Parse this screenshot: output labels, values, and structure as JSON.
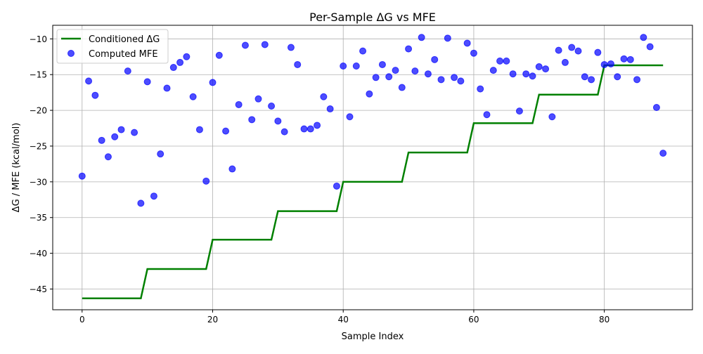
{
  "chart_data": {
    "type": "line+scatter",
    "title": "Per-Sample ΔG vs MFE",
    "xlabel": "Sample Index",
    "ylabel": "ΔG / MFE (kcal/mol)",
    "xlim": [
      -4.5,
      93.5
    ],
    "ylim": [
      -47.9,
      -8.1
    ],
    "xticks": [
      0,
      20,
      40,
      60,
      80
    ],
    "yticks": [
      -45,
      -40,
      -35,
      -30,
      -25,
      -20,
      -15,
      -10
    ],
    "grid": true,
    "legend_position": "upper-left",
    "series": [
      {
        "name": "Conditioned ΔG",
        "kind": "line",
        "color": "#008000",
        "x": [
          0,
          9,
          10,
          19,
          20,
          29,
          30,
          39,
          40,
          49,
          50,
          59,
          60,
          69,
          70,
          79,
          80,
          89
        ],
        "y": [
          -46.3,
          -46.3,
          -42.2,
          -42.2,
          -38.1,
          -38.1,
          -34.1,
          -34.1,
          -30.0,
          -30.0,
          -25.9,
          -25.9,
          -21.8,
          -21.8,
          -17.8,
          -17.8,
          -13.7,
          -13.7
        ]
      },
      {
        "name": "Computed MFE",
        "kind": "scatter",
        "color": "#0000ff",
        "x": [
          0,
          1,
          2,
          3,
          4,
          5,
          6,
          7,
          8,
          9,
          10,
          11,
          12,
          13,
          14,
          15,
          16,
          17,
          18,
          19,
          20,
          21,
          22,
          23,
          24,
          25,
          26,
          27,
          28,
          29,
          30,
          31,
          32,
          33,
          34,
          35,
          36,
          37,
          38,
          39,
          40,
          41,
          42,
          43,
          44,
          45,
          46,
          47,
          48,
          49,
          50,
          51,
          52,
          53,
          54,
          55,
          56,
          57,
          58,
          59,
          60,
          61,
          62,
          63,
          64,
          65,
          66,
          67,
          68,
          69,
          70,
          71,
          72,
          73,
          74,
          75,
          76,
          77,
          78,
          79,
          80,
          81,
          82,
          83,
          84,
          85,
          86,
          87,
          88,
          89
        ],
        "y": [
          -29.2,
          -15.9,
          -17.9,
          -24.2,
          -26.5,
          -23.7,
          -22.7,
          -14.5,
          -23.1,
          -33.0,
          -16.0,
          -32.0,
          -26.1,
          -16.9,
          -14.0,
          -13.3,
          -12.5,
          -18.1,
          -22.7,
          -29.9,
          -16.1,
          -12.3,
          -22.9,
          -28.2,
          -19.2,
          -10.9,
          -21.3,
          -18.4,
          -10.8,
          -19.4,
          -21.5,
          -23.0,
          -11.2,
          -13.6,
          -22.6,
          -22.6,
          -22.1,
          -18.1,
          -19.8,
          -30.6,
          -13.8,
          -20.9,
          -13.8,
          -11.7,
          -17.7,
          -15.4,
          -13.6,
          -15.3,
          -14.4,
          -16.8,
          -11.4,
          -14.5,
          -9.8,
          -14.9,
          -12.9,
          -15.7,
          -9.9,
          -15.4,
          -15.9,
          -10.6,
          -12.0,
          -17.0,
          -20.6,
          -14.4,
          -13.1,
          -13.1,
          -14.9,
          -20.1,
          -14.9,
          -15.2,
          -13.9,
          -14.2,
          -20.9,
          -11.6,
          -13.3,
          -11.2,
          -11.7,
          -15.3,
          -15.7,
          -11.9,
          -13.6,
          -13.5,
          -15.3,
          -12.8,
          -12.9,
          -15.7,
          -9.8,
          -11.1,
          -19.6,
          -26.0
        ]
      }
    ]
  }
}
